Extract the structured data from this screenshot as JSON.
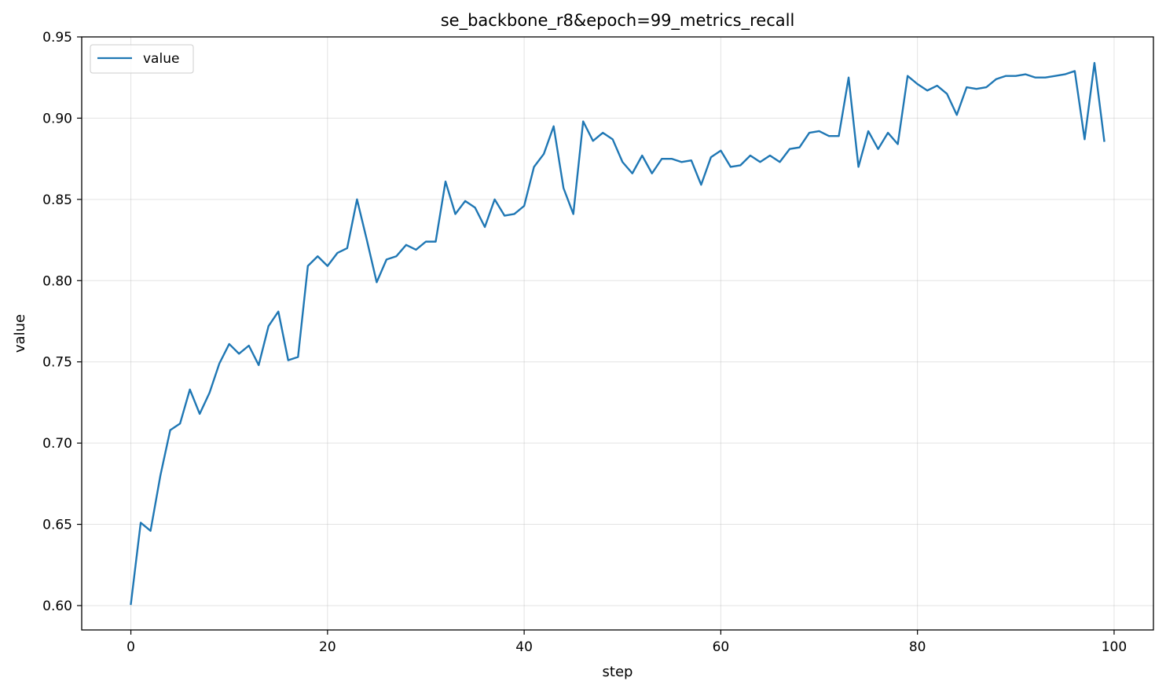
{
  "chart_data": {
    "type": "line",
    "title": "se_backbone_r8&epoch=99_metrics_recall",
    "xlabel": "step",
    "ylabel": "value",
    "xlim": [
      -5,
      104
    ],
    "ylim": [
      0.585,
      0.95
    ],
    "xticks": [
      0,
      20,
      40,
      60,
      80,
      100
    ],
    "xtick_labels": [
      "0",
      "20",
      "40",
      "60",
      "80",
      "100"
    ],
    "yticks": [
      0.6,
      0.65,
      0.7,
      0.75,
      0.8,
      0.85,
      0.9,
      0.95
    ],
    "ytick_labels": [
      "0.60",
      "0.65",
      "0.70",
      "0.75",
      "0.80",
      "0.85",
      "0.90",
      "0.95"
    ],
    "grid": true,
    "legend_position": "top-left",
    "series": [
      {
        "name": "value",
        "color": "#1f77b4",
        "x": [
          0,
          1,
          2,
          3,
          4,
          5,
          6,
          7,
          8,
          9,
          10,
          11,
          12,
          13,
          14,
          15,
          16,
          17,
          18,
          19,
          20,
          21,
          22,
          23,
          24,
          25,
          26,
          27,
          28,
          29,
          30,
          31,
          32,
          33,
          34,
          35,
          36,
          37,
          38,
          39,
          40,
          41,
          42,
          43,
          44,
          45,
          46,
          47,
          48,
          49,
          50,
          51,
          52,
          53,
          54,
          55,
          56,
          57,
          58,
          59,
          60,
          61,
          62,
          63,
          64,
          65,
          66,
          67,
          68,
          69,
          70,
          71,
          72,
          73,
          74,
          75,
          76,
          77,
          78,
          79,
          80,
          81,
          82,
          83,
          84,
          85,
          86,
          87,
          88,
          89,
          90,
          91,
          92,
          93,
          94,
          95,
          96,
          97,
          98,
          99
        ],
        "values": [
          0.601,
          0.651,
          0.646,
          0.68,
          0.708,
          0.712,
          0.733,
          0.718,
          0.731,
          0.749,
          0.761,
          0.755,
          0.76,
          0.748,
          0.772,
          0.781,
          0.751,
          0.753,
          0.809,
          0.815,
          0.809,
          0.817,
          0.82,
          0.85,
          0.825,
          0.799,
          0.813,
          0.815,
          0.822,
          0.819,
          0.824,
          0.824,
          0.861,
          0.841,
          0.849,
          0.845,
          0.833,
          0.85,
          0.84,
          0.841,
          0.846,
          0.87,
          0.878,
          0.895,
          0.857,
          0.841,
          0.898,
          0.886,
          0.891,
          0.887,
          0.873,
          0.866,
          0.877,
          0.866,
          0.875,
          0.875,
          0.873,
          0.874,
          0.859,
          0.876,
          0.88,
          0.87,
          0.871,
          0.877,
          0.873,
          0.877,
          0.873,
          0.881,
          0.882,
          0.891,
          0.892,
          0.889,
          0.889,
          0.925,
          0.87,
          0.892,
          0.881,
          0.891,
          0.884,
          0.926,
          0.921,
          0.917,
          0.92,
          0.915,
          0.902,
          0.919,
          0.918,
          0.919,
          0.924,
          0.926,
          0.926,
          0.927,
          0.925,
          0.925,
          0.926,
          0.927,
          0.929,
          0.887,
          0.934,
          0.886
        ]
      }
    ]
  }
}
